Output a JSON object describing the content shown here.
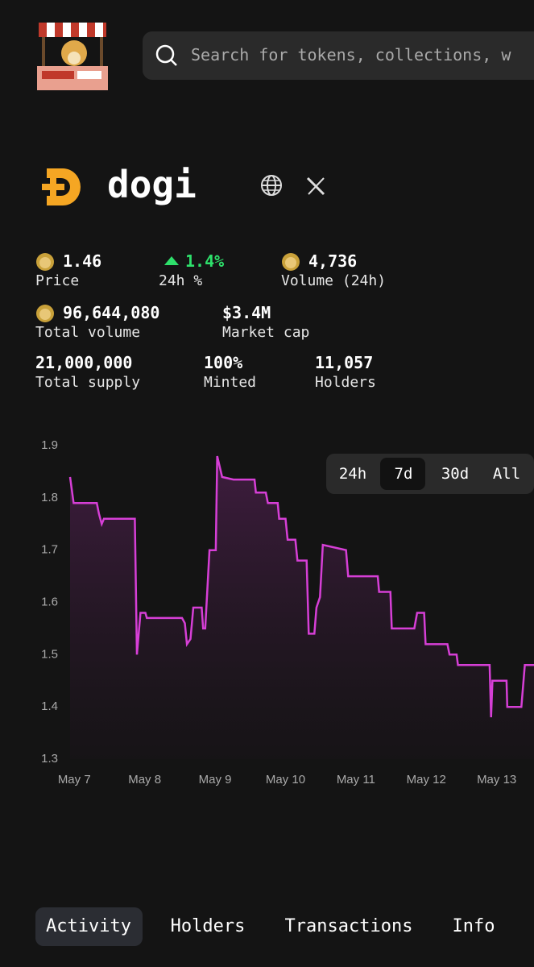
{
  "header": {
    "search_placeholder": "Search for tokens, collections, w"
  },
  "token": {
    "name": "dogi"
  },
  "stats": [
    {
      "value": "1.46",
      "label": "Price"
    },
    {
      "value": "1.4%",
      "label": "24h %"
    },
    {
      "value": "4,736",
      "label": "Volume (24h)"
    },
    {
      "value": "96,644,080",
      "label": "Total volume"
    },
    {
      "value": "$3.4M",
      "label": "Market cap"
    },
    {
      "value": "21,000,000",
      "label": "Total supply"
    },
    {
      "value": "100%",
      "label": "Minted"
    },
    {
      "value": "11,057",
      "label": "Holders"
    }
  ],
  "time_ranges": [
    "24h",
    "7d",
    "30d",
    "All"
  ],
  "tabs": [
    "Activity",
    "Holders",
    "Transactions",
    "Info"
  ],
  "chart_data": {
    "type": "line",
    "color": "#d63fd6",
    "x": [
      -0.06,
      -0.01,
      0.32,
      0.35,
      0.39,
      0.42,
      0.86,
      0.89,
      0.94,
      1.01,
      1.03,
      1.53,
      1.57,
      1.6,
      1.65,
      1.69,
      1.81,
      1.83,
      1.86,
      1.92,
      2.01,
      2.03,
      2.1,
      2.26,
      2.56,
      2.58,
      2.72,
      2.75,
      2.89,
      2.91,
      3.0,
      3.03,
      3.14,
      3.17,
      3.3,
      3.33,
      3.41,
      3.44,
      3.49,
      3.53,
      3.86,
      3.89,
      4.31,
      4.33,
      4.49,
      4.51,
      4.83,
      4.87,
      4.97,
      4.99,
      5.3,
      5.33,
      5.43,
      5.45,
      5.9,
      5.92,
      5.94,
      6.14,
      6.15,
      6.35,
      6.4,
      6.53
    ],
    "values": [
      1.84,
      1.79,
      1.79,
      1.77,
      1.75,
      1.76,
      1.76,
      1.5,
      1.58,
      1.58,
      1.57,
      1.57,
      1.56,
      1.52,
      1.53,
      1.59,
      1.59,
      1.55,
      1.55,
      1.7,
      1.7,
      1.88,
      1.84,
      1.835,
      1.835,
      1.81,
      1.81,
      1.79,
      1.79,
      1.76,
      1.76,
      1.72,
      1.72,
      1.68,
      1.68,
      1.54,
      1.54,
      1.59,
      1.61,
      1.71,
      1.7,
      1.65,
      1.65,
      1.62,
      1.62,
      1.55,
      1.55,
      1.58,
      1.58,
      1.52,
      1.52,
      1.5,
      1.5,
      1.48,
      1.48,
      1.38,
      1.45,
      1.45,
      1.4,
      1.4,
      1.48,
      1.48
    ],
    "xlim": [
      -0.06,
      6.53
    ],
    "xticks": [
      {
        "value": 0,
        "label": "May 7"
      },
      {
        "value": 1,
        "label": "May 8"
      },
      {
        "value": 2,
        "label": "May 9"
      },
      {
        "value": 3,
        "label": "May 10"
      },
      {
        "value": 4,
        "label": "May 11"
      },
      {
        "value": 5,
        "label": "May 12"
      },
      {
        "value": 6,
        "label": "May 13"
      }
    ],
    "ylim": [
      1.3,
      1.9
    ],
    "yticks": [
      1.3,
      1.4,
      1.5,
      1.6,
      1.7,
      1.8,
      1.9
    ]
  }
}
